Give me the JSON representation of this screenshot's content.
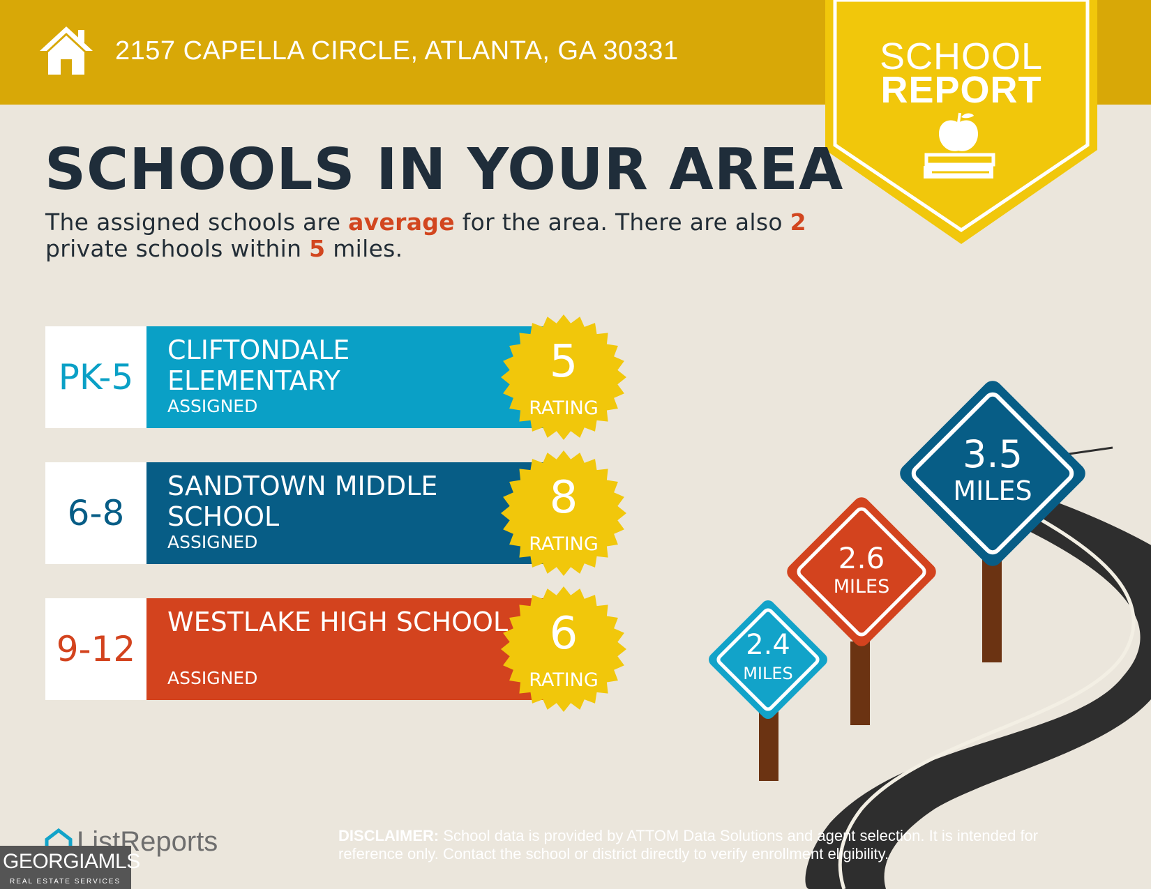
{
  "header": {
    "address": "2157 CAPELLA CIRCLE, ATLANTA, GA 30331"
  },
  "badge": {
    "line1": "SCHOOL",
    "line2": "REPORT"
  },
  "heading": "SCHOOLS IN YOUR AREA",
  "summary": {
    "part1": "The assigned schools are ",
    "quality": "average",
    "part2": " for the area. There are also ",
    "private_count": "2",
    "part3": " private schools within ",
    "radius": "5",
    "part4": " miles."
  },
  "schools": [
    {
      "grades": "PK-5",
      "name": "CLIFTONDALE ELEMENTARY",
      "status": "ASSIGNED",
      "rating": "5",
      "rating_label": "RATING",
      "color": "#0aa0c6",
      "grade_color": "#0aa0c6"
    },
    {
      "grades": "6-8",
      "name": "SANDTOWN MIDDLE SCHOOL",
      "status": "ASSIGNED",
      "rating": "8",
      "rating_label": "RATING",
      "color": "#075d86",
      "grade_color": "#075d86"
    },
    {
      "grades": "9-12",
      "name": "WESTLAKE HIGH SCHOOL",
      "status": "ASSIGNED",
      "rating": "6",
      "rating_label": "RATING",
      "color": "#d3431e",
      "grade_color": "#d3431e"
    }
  ],
  "distance_signs": [
    {
      "value": "2.4",
      "unit": "MILES",
      "color": "#12a3c9"
    },
    {
      "value": "2.6",
      "unit": "MILES",
      "color": "#d3431e"
    },
    {
      "value": "3.5",
      "unit": "MILES",
      "color": "#075d86"
    }
  ],
  "footer": {
    "disclaimer_label": "DISCLAIMER:",
    "disclaimer_text": " School data is provided by ATTOM Data Solutions and agent selection. It is intended for reference only. Contact the school or district directly to verify enrollment eligibility.",
    "brand": "ListReports",
    "watermark_main": "GEORGIAMLS",
    "watermark_sub": "REAL ESTATE SERVICES"
  },
  "colors": {
    "header_gold": "#d8a807",
    "badge_yellow": "#f1c70b",
    "seal_yellow": "#f1c70b",
    "heading_dark": "#1f2d3a",
    "highlight_red": "#d2461f",
    "background": "#ebe6dc"
  },
  "icons": [
    "home-icon",
    "apple-books-icon",
    "listreports-logo-icon"
  ]
}
